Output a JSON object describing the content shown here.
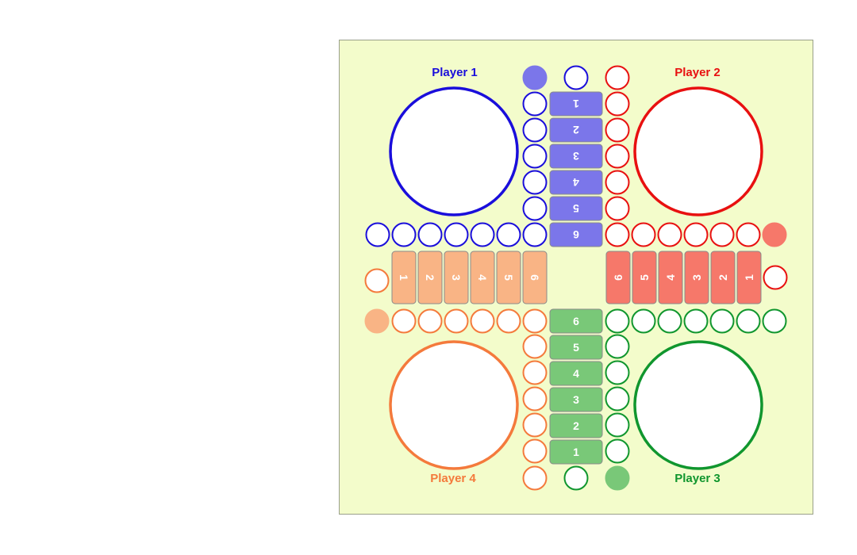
{
  "players": [
    {
      "id": "p1",
      "label": "Player 1",
      "color": "#1a0edb",
      "fill": "#7b76ea"
    },
    {
      "id": "p2",
      "label": "Player 2",
      "color": "#e81010",
      "fill": "#f6786a"
    },
    {
      "id": "p3",
      "label": "Player 3",
      "color": "#10962e",
      "fill": "#79c878"
    },
    {
      "id": "p4",
      "label": "Player 4",
      "color": "#f47a3c",
      "fill": "#f9b485"
    }
  ],
  "home_lanes": {
    "p1": [
      "1",
      "2",
      "3",
      "4",
      "5",
      "6"
    ],
    "p2": [
      "1",
      "2",
      "3",
      "4",
      "5",
      "6"
    ],
    "p3": [
      "1",
      "2",
      "3",
      "4",
      "5",
      "6"
    ],
    "p4": [
      "1",
      "2",
      "3",
      "4",
      "5",
      "6"
    ]
  },
  "colors": {
    "board_background": "#f3fccb"
  }
}
